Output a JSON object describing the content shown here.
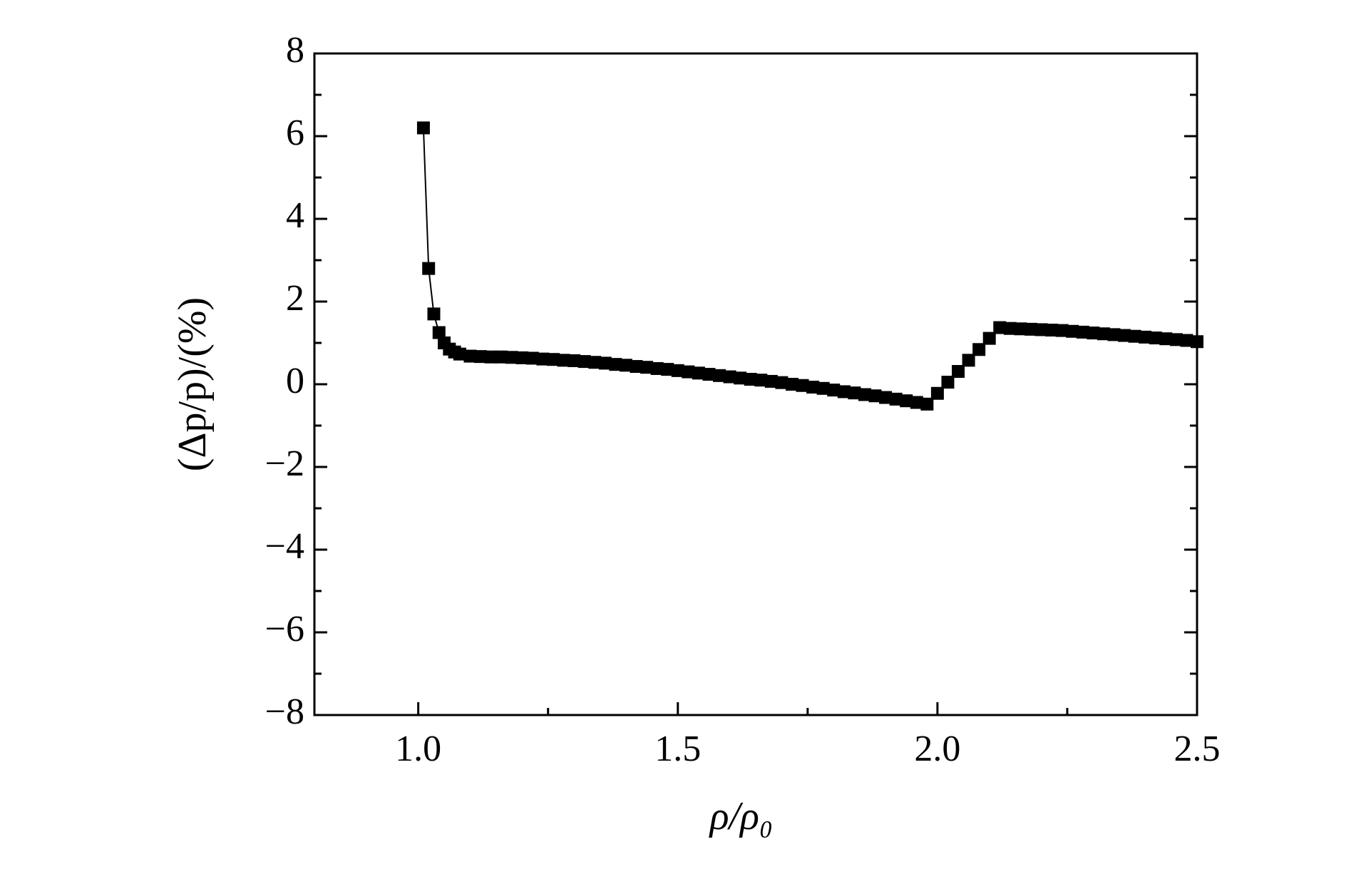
{
  "chart_data": {
    "type": "line",
    "xlabel": "ρ/ρ₀",
    "ylabel": "(Δp/p)/(%)",
    "x": [
      1.01,
      1.02,
      1.03,
      1.04,
      1.05,
      1.06,
      1.07,
      1.08,
      1.1,
      1.12,
      1.14,
      1.16,
      1.18,
      1.2,
      1.22,
      1.24,
      1.26,
      1.28,
      1.3,
      1.32,
      1.34,
      1.36,
      1.38,
      1.4,
      1.42,
      1.44,
      1.46,
      1.48,
      1.5,
      1.52,
      1.54,
      1.56,
      1.58,
      1.6,
      1.62,
      1.64,
      1.66,
      1.68,
      1.7,
      1.72,
      1.74,
      1.76,
      1.78,
      1.8,
      1.82,
      1.84,
      1.86,
      1.88,
      1.9,
      1.92,
      1.94,
      1.96,
      1.98,
      2.0,
      2.02,
      2.04,
      2.06,
      2.08,
      2.1,
      2.12,
      2.14,
      2.16,
      2.18,
      2.2,
      2.22,
      2.24,
      2.26,
      2.28,
      2.3,
      2.32,
      2.34,
      2.36,
      2.38,
      2.4,
      2.42,
      2.44,
      2.46,
      2.48,
      2.5
    ],
    "series": [
      {
        "color": "#000000",
        "values": [
          6.2,
          2.8,
          1.7,
          1.25,
          1.0,
          0.85,
          0.78,
          0.73,
          0.68,
          0.67,
          0.66,
          0.66,
          0.65,
          0.64,
          0.63,
          0.61,
          0.6,
          0.58,
          0.57,
          0.55,
          0.53,
          0.51,
          0.48,
          0.46,
          0.43,
          0.41,
          0.38,
          0.36,
          0.33,
          0.3,
          0.27,
          0.24,
          0.21,
          0.18,
          0.15,
          0.12,
          0.1,
          0.07,
          0.04,
          0.0,
          -0.03,
          -0.07,
          -0.1,
          -0.14,
          -0.18,
          -0.21,
          -0.25,
          -0.28,
          -0.32,
          -0.36,
          -0.4,
          -0.44,
          -0.48,
          -0.22,
          0.05,
          0.31,
          0.58,
          0.84,
          1.11,
          1.37,
          1.35,
          1.34,
          1.33,
          1.32,
          1.31,
          1.3,
          1.28,
          1.26,
          1.24,
          1.22,
          1.2,
          1.18,
          1.16,
          1.14,
          1.12,
          1.1,
          1.08,
          1.06,
          1.03
        ]
      }
    ],
    "xlim": [
      0.8,
      2.5
    ],
    "xticks": [
      {
        "value": 1.0,
        "label": "1.0"
      },
      1.5,
      {
        "value": 2.0,
        "label": "2.0"
      },
      2.5
    ],
    "xminorticks": [
      1.25,
      1.75,
      2.25
    ],
    "ylim": [
      -8,
      8
    ],
    "yticks": [
      {
        "value": -8,
        "label": "−8"
      },
      {
        "value": -6,
        "label": "−6"
      },
      {
        "value": -4,
        "label": "−4"
      },
      {
        "value": -2,
        "label": "−2"
      },
      0,
      2,
      4,
      6,
      8
    ],
    "yminorticks": [
      -7,
      -5,
      -3,
      -1,
      1,
      3,
      5,
      7
    ],
    "marker": "square"
  }
}
